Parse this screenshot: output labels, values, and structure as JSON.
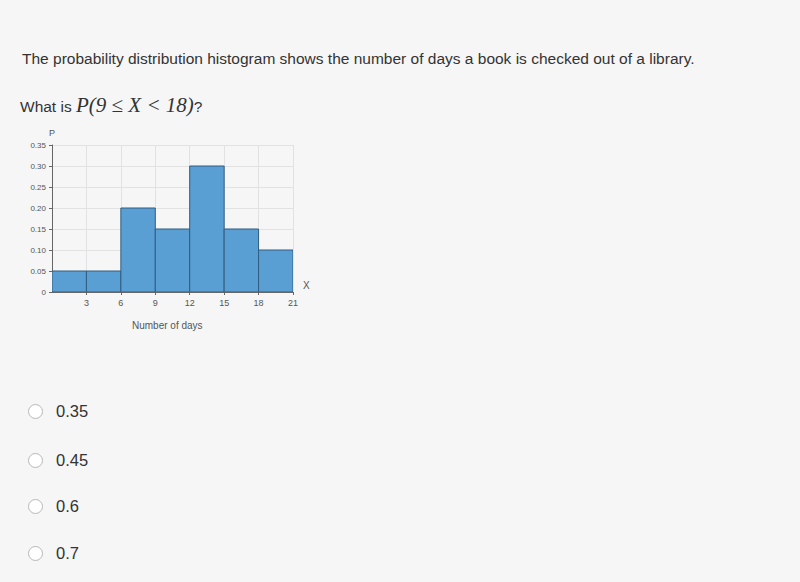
{
  "intro": "The probability distribution histogram shows the number of days a book is checked out of a library.",
  "question": {
    "lead": "What is",
    "math": "P(9 ≤ X < 18)",
    "end": "?"
  },
  "chart_data": {
    "type": "histogram",
    "x_label": "Number of days",
    "x_name": "X",
    "y_name": "P",
    "bins": [
      0,
      3,
      6,
      9,
      12,
      15,
      18,
      21
    ],
    "values": [
      0.05,
      0.05,
      0.2,
      0.15,
      0.3,
      0.15,
      0.1
    ],
    "color": "#5a9fd4",
    "xlim": [
      0,
      21
    ],
    "xticks": [
      3,
      6,
      9,
      12,
      15,
      18,
      21
    ],
    "ylim": [
      0,
      0.35
    ],
    "yticks": [
      0,
      0.05,
      {
        "value": 0.1,
        "label": "0.10"
      },
      0.15,
      {
        "value": 0.2,
        "label": "0.20"
      },
      0.25,
      {
        "value": 0.3,
        "label": "0.30"
      },
      0.35
    ],
    "grid": true
  },
  "options": [
    "0.35",
    "0.45",
    "0.6",
    "0.7"
  ]
}
